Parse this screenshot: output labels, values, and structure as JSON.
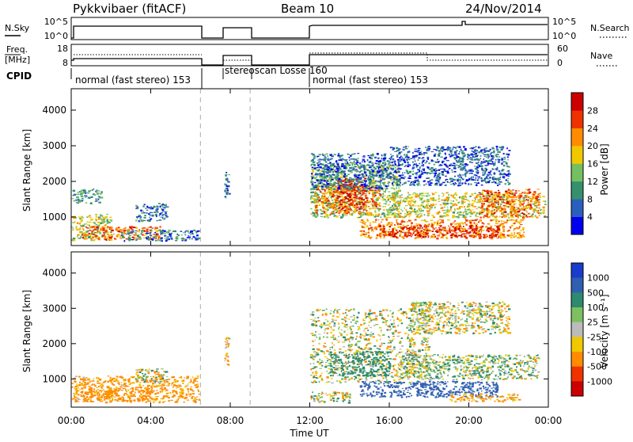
{
  "header": {
    "station": "Pykkvibaer (fitACF)",
    "beam": "Beam 10",
    "date": "24/Nov/2014"
  },
  "strips": {
    "nsky_label": "N.Sky",
    "nsky_ticks": [
      "10^5",
      "10^0"
    ],
    "nsearch_label": "N.Search",
    "nsearch_ticks": [
      "10^5",
      "10^0"
    ],
    "freq_label": "Freq.",
    "freq_unit": "[MHz]",
    "freq_ticks": [
      "18",
      "8"
    ],
    "nave_label": "Nave",
    "nave_ticks": [
      "60",
      "0"
    ],
    "cpid_label": "CPID",
    "cpid_segments": [
      {
        "text": "normal (fast stereo) 153",
        "start_hour": 0.0,
        "end_hour": 6.5
      },
      {
        "text": "stereoscan Losse 160",
        "start_hour": 7.6,
        "end_hour": 9.0
      },
      {
        "text": "normal (fast stereo) 153",
        "start_hour": 12.0,
        "end_hour": 24.0
      }
    ]
  },
  "chart_data": [
    {
      "type": "heatmap",
      "name": "power",
      "ylabel": "Slant Range [km]",
      "xlabel": "Time UT",
      "x_ticks": [
        "00:00",
        "04:00",
        "08:00",
        "12:00",
        "16:00",
        "20:00",
        "00:00"
      ],
      "x_tick_hours": [
        0,
        4,
        8,
        12,
        16,
        20,
        24
      ],
      "y_ticks": [
        1000,
        2000,
        3000,
        4000
      ],
      "ylim": [
        200,
        4600
      ],
      "xlim": [
        0,
        24
      ],
      "data_gaps": [
        [
          6.5,
          7.6
        ],
        [
          9.0,
          12.0
        ]
      ],
      "dashed_time_markers": [
        6.5,
        9.0
      ],
      "colorbar": {
        "label": "Power [dB]",
        "ticks": [
          4,
          8,
          12,
          16,
          20,
          24,
          28
        ],
        "range": [
          0,
          32
        ],
        "colors": [
          "#0000ee",
          "#2b5fbe",
          "#36906e",
          "#74c060",
          "#f0c800",
          "#ff8c00",
          "#ee3300",
          "#cc0000"
        ]
      },
      "regions": [
        {
          "t0": 0.0,
          "t1": 2.0,
          "r0": 350,
          "r1": 1100,
          "v": 16
        },
        {
          "t0": 0.5,
          "t1": 4.5,
          "r0": 380,
          "r1": 750,
          "v": 24
        },
        {
          "t0": 2.5,
          "t1": 6.4,
          "r0": 350,
          "r1": 650,
          "v": 8
        },
        {
          "t0": 3.2,
          "t1": 4.8,
          "r0": 900,
          "r1": 1400,
          "v": 8
        },
        {
          "t0": 0.0,
          "t1": 1.5,
          "r0": 1400,
          "r1": 1800,
          "v": 10
        },
        {
          "t0": 12.0,
          "t1": 16.5,
          "r0": 1000,
          "r1": 2500,
          "v": 14
        },
        {
          "t0": 12.2,
          "t1": 15.5,
          "r0": 1100,
          "r1": 1900,
          "v": 23
        },
        {
          "t0": 13.3,
          "t1": 14.8,
          "r0": 1200,
          "r1": 2100,
          "v": 28
        },
        {
          "t0": 14.5,
          "t1": 22.8,
          "r0": 420,
          "r1": 950,
          "v": 22
        },
        {
          "t0": 15.5,
          "t1": 21.5,
          "r0": 450,
          "r1": 780,
          "v": 29
        },
        {
          "t0": 16.0,
          "t1": 23.8,
          "r0": 1000,
          "r1": 1700,
          "v": 17
        },
        {
          "t0": 12.0,
          "t1": 16.0,
          "r0": 1800,
          "r1": 2800,
          "v": 7
        },
        {
          "t0": 16.0,
          "t1": 22.0,
          "r0": 1900,
          "r1": 3000,
          "v": 6
        },
        {
          "t0": 20.5,
          "t1": 23.5,
          "r0": 1000,
          "r1": 1800,
          "v": 24
        },
        {
          "t0": 7.7,
          "t1": 7.9,
          "r0": 1500,
          "r1": 2300,
          "v": 7
        }
      ]
    },
    {
      "type": "heatmap",
      "name": "velocity",
      "ylabel": "Slant Range [km]",
      "xlabel": "Time UT",
      "x_ticks": [
        "00:00",
        "04:00",
        "08:00",
        "12:00",
        "16:00",
        "20:00",
        "00:00"
      ],
      "x_tick_hours": [
        0,
        4,
        8,
        12,
        16,
        20,
        24
      ],
      "y_ticks": [
        1000,
        2000,
        3000,
        4000
      ],
      "ylim": [
        200,
        4600
      ],
      "xlim": [
        0,
        24
      ],
      "data_gaps": [
        [
          6.5,
          7.6
        ],
        [
          9.0,
          12.0
        ]
      ],
      "dashed_time_markers": [
        6.5,
        9.0
      ],
      "colorbar": {
        "label": "Velocity [m s⁻¹]",
        "ticks": [
          "1000",
          "500",
          "100",
          "25",
          "-25",
          "-100",
          "-500",
          "-1000"
        ],
        "colors": [
          "#1a3ccc",
          "#2f5fb0",
          "#2e8a6e",
          "#7cc060",
          "#bbbbbb",
          "#f0c800",
          "#ff8c00",
          "#ee3300",
          "#cc0000"
        ]
      },
      "regions": [
        {
          "t0": 0.0,
          "t1": 6.4,
          "r0": 350,
          "r1": 1100,
          "v": -200
        },
        {
          "t0": 0.5,
          "t1": 4.0,
          "r0": 380,
          "r1": 700,
          "v": -300
        },
        {
          "t0": 3.2,
          "t1": 4.8,
          "r0": 900,
          "r1": 1300,
          "v": 0
        },
        {
          "t0": 12.0,
          "t1": 18.0,
          "r0": 900,
          "r1": 3000,
          "v": 0
        },
        {
          "t0": 17.0,
          "t1": 22.0,
          "r0": 2300,
          "r1": 3200,
          "v": 0
        },
        {
          "t0": 14.5,
          "t1": 21.5,
          "r0": 500,
          "r1": 950,
          "v": 700
        },
        {
          "t0": 13.0,
          "t1": 16.0,
          "r0": 1100,
          "r1": 1800,
          "v": 300
        },
        {
          "t0": 16.5,
          "t1": 23.5,
          "r0": 1000,
          "r1": 1700,
          "v": 60
        },
        {
          "t0": 19.0,
          "t1": 22.5,
          "r0": 380,
          "r1": 600,
          "v": -150
        },
        {
          "t0": 12.0,
          "t1": 14.0,
          "r0": 350,
          "r1": 650,
          "v": 0
        },
        {
          "t0": 7.7,
          "t1": 7.9,
          "r0": 1400,
          "r1": 2200,
          "v": -100
        }
      ]
    }
  ]
}
